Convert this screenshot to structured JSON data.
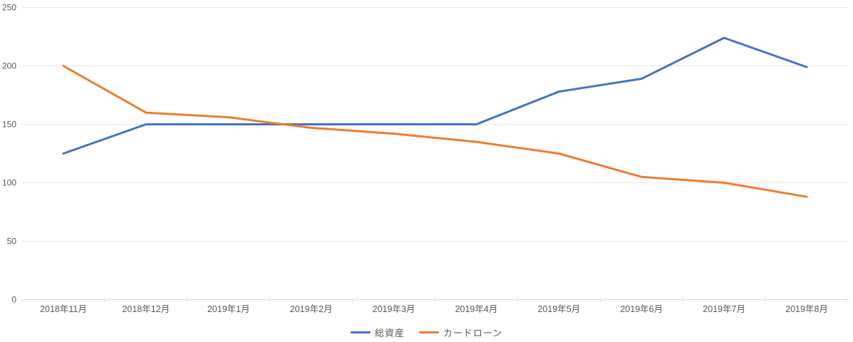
{
  "chart_data": {
    "type": "line",
    "title": "",
    "categories": [
      "2018年11月",
      "2018年12月",
      "2019年1月",
      "2019年2月",
      "2019年3月",
      "2019年4月",
      "2019年5月",
      "2019年6月",
      "2019年7月",
      "2019年8月"
    ],
    "series": [
      {
        "name": "総資産",
        "color": "#4472C4",
        "values": [
          125,
          150,
          150,
          150,
          150,
          150,
          178,
          189,
          224,
          199
        ]
      },
      {
        "name": "カードローン",
        "color": "#ED7D31",
        "values": [
          200,
          160,
          156,
          147,
          142,
          135,
          125,
          105,
          100,
          88
        ]
      }
    ],
    "xlabel": "",
    "ylabel": "",
    "ylim": [
      0,
      250
    ],
    "yticks": [
      0,
      50,
      100,
      150,
      200,
      250
    ],
    "grid": true,
    "legend_position": "bottom"
  },
  "colors": {
    "background": "#FFFFFF",
    "gridline": "#E6E6E6",
    "axis_line": "#D9D9D9",
    "tick_label": "#595959"
  }
}
